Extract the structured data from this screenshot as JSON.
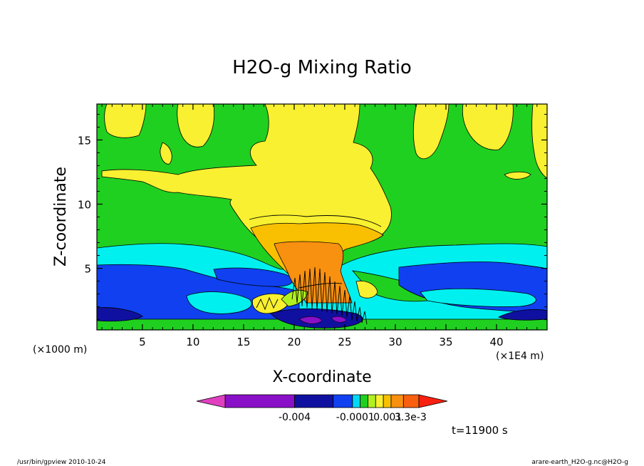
{
  "chart_data": {
    "type": "heatmap",
    "title": "H2O-g Mixing Ratio",
    "xlabel": "X-coordinate",
    "ylabel": "Z-coordinate",
    "x_unit_left": "(×1000 m)",
    "x_unit_right": "(×1E4 m)",
    "xlim": [
      0.5,
      45
    ],
    "ylim": [
      0.2,
      17.8
    ],
    "x_ticks": [
      5,
      10,
      15,
      20,
      25,
      30,
      35,
      40
    ],
    "y_ticks": [
      5,
      10,
      15
    ],
    "x_tick_labels": [
      "5",
      "10",
      "15",
      "20",
      "25",
      "30",
      "35",
      "40"
    ],
    "y_tick_labels": [
      "5",
      "10",
      "15"
    ],
    "colorbar": {
      "colors": [
        "#e040c0",
        "#8a10c8",
        "#1010a0",
        "#1040f0",
        "#00d8f8",
        "#20d020",
        "#b0f020",
        "#f8f030",
        "#f8c000",
        "#f89010",
        "#f86010",
        "#f82010"
      ],
      "tick_labels": [
        "-0.004",
        "-0.0001",
        "0.001",
        "3.3e-3"
      ]
    },
    "annotation": "t=11900 s",
    "grid": false
  },
  "footer": {
    "left": "/usr/bin/gpview  2010-10-24",
    "right": "arare-earth_H2O-g.nc@H2O-g"
  }
}
